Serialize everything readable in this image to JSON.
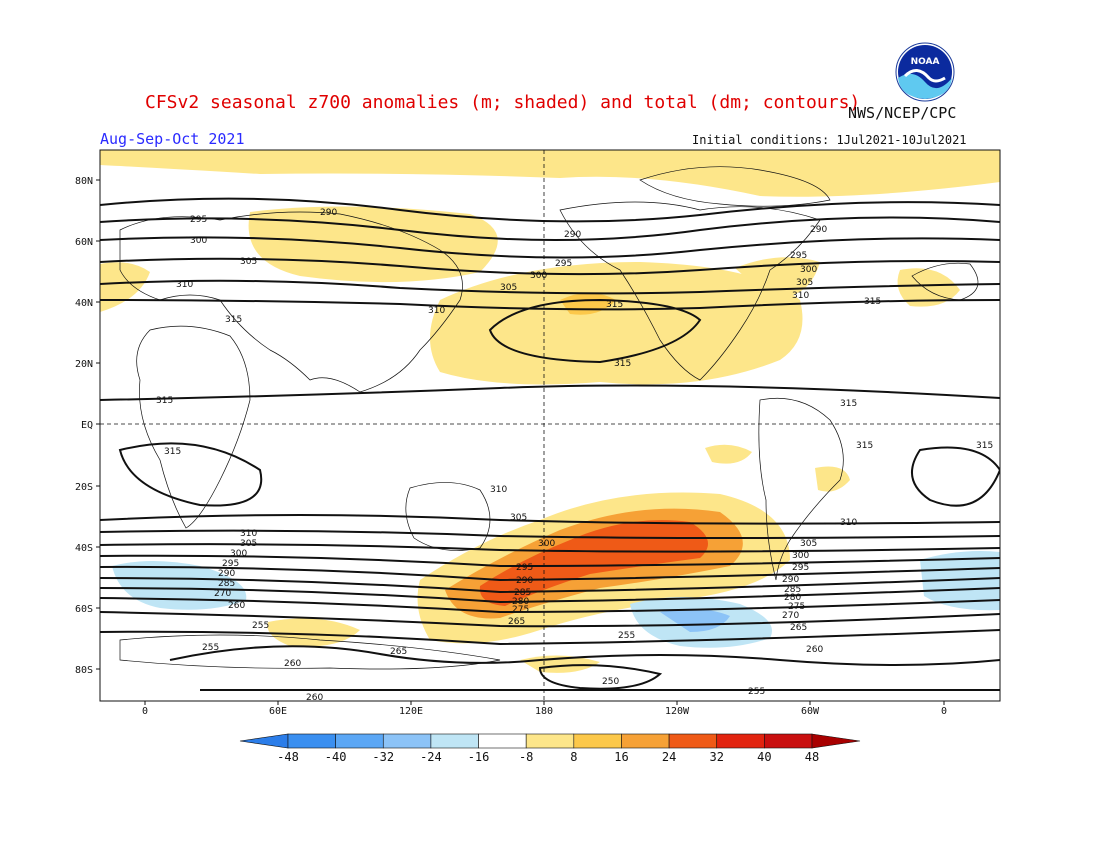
{
  "header": {
    "title": "CFSv2 seasonal z700 anomalies (m; shaded) and total (dm; contours)",
    "season": "Aug-Sep-Oct 2021",
    "credit": "NWS/NCEP/CPC",
    "initial_conditions": "Initial conditions: 1Jul2021-10Jul2021",
    "logo_text": "NOAA"
  },
  "map": {
    "lat_labels": [
      "80N",
      "60N",
      "40N",
      "20N",
      "EQ",
      "20S",
      "40S",
      "60S",
      "80S"
    ],
    "lon_labels": [
      "0",
      "60E",
      "120E",
      "180",
      "120W",
      "60W",
      "0"
    ],
    "contour_labels": [
      "290",
      "295",
      "300",
      "305",
      "310",
      "315",
      "255",
      "260",
      "265",
      "270",
      "275",
      "280",
      "285",
      "250"
    ]
  },
  "colorbar": {
    "ticks": [
      "-48",
      "-40",
      "-32",
      "-24",
      "-16",
      "-8",
      "8",
      "16",
      "24",
      "32",
      "40",
      "48"
    ],
    "colors": [
      "#2b7de9",
      "#3a8ff0",
      "#5ba7f5",
      "#8cc3f7",
      "#bfe5f5",
      "#ffffff",
      "#fde68a",
      "#fcc84a",
      "#f6a136",
      "#ef5a17",
      "#e2230f",
      "#c90f0f",
      "#a80000"
    ]
  }
}
